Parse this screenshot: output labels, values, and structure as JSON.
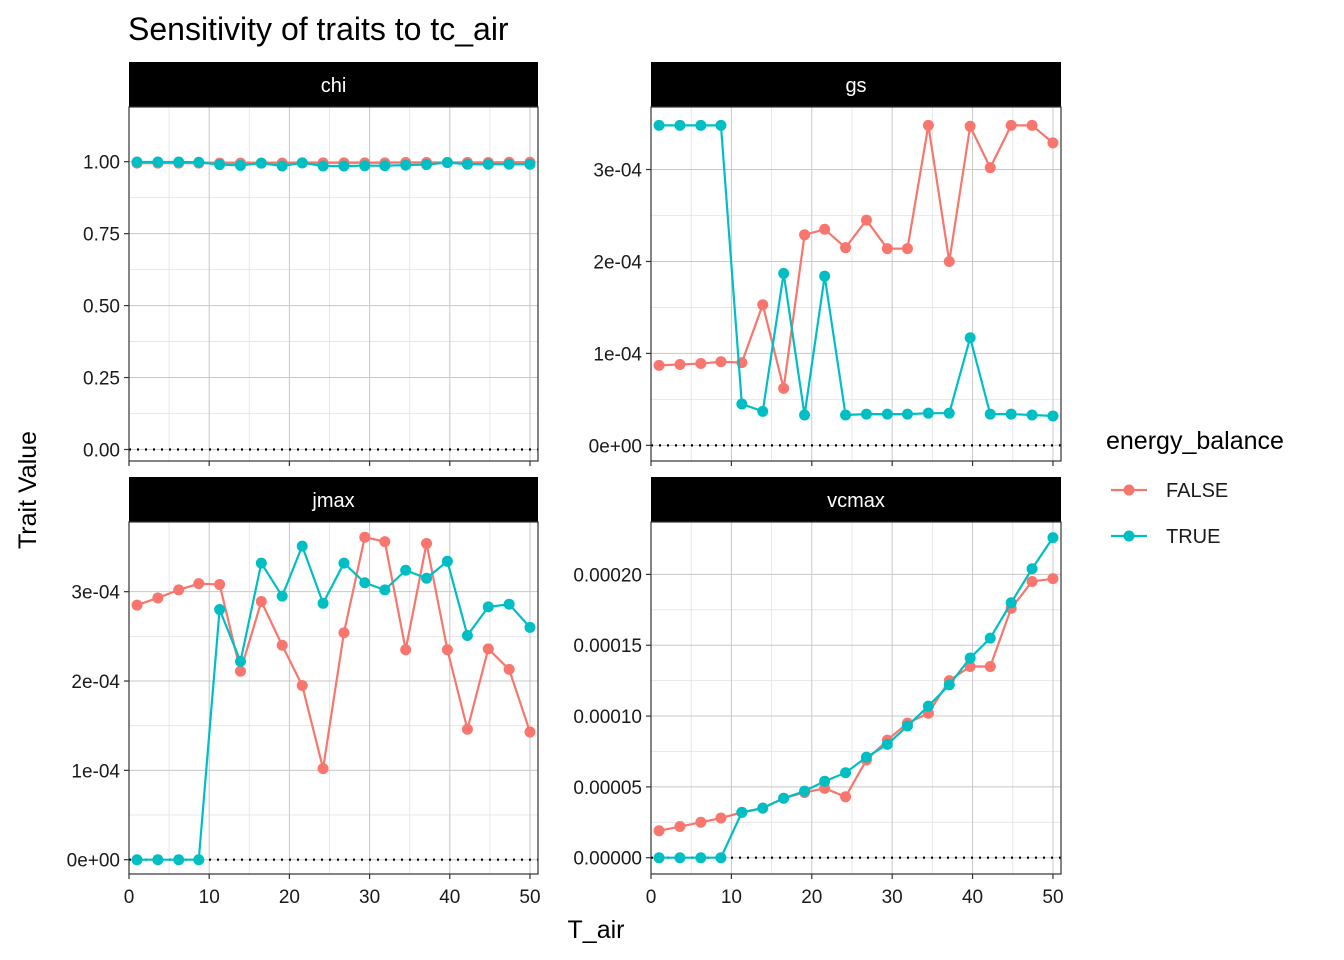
{
  "chart_data": {
    "type": "line",
    "title": "Sensitivity of traits to tc_air",
    "xlabel": "T_air",
    "ylabel": "Trait Value",
    "legend": {
      "title": "energy_balance",
      "placement": "right",
      "entries": [
        {
          "name": "FALSE",
          "color": "#F8766D"
        },
        {
          "name": "TRUE",
          "color": "#00BFC4"
        }
      ]
    },
    "x": [
      1,
      3.6,
      6.2,
      8.7,
      11.3,
      13.9,
      16.5,
      19.1,
      21.6,
      24.2,
      26.8,
      29.4,
      31.9,
      34.5,
      37.1,
      39.7,
      42.2,
      44.8,
      47.4,
      50
    ],
    "xlim": [
      0,
      51
    ],
    "xticks": [
      0,
      10,
      20,
      30,
      40,
      50
    ],
    "grid": true,
    "reference_line": {
      "y": 0,
      "style": "dotted"
    },
    "panels": [
      {
        "strip": "chi",
        "ylim": [
          -0.04,
          1.19
        ],
        "yticks": [
          0,
          0.25,
          0.5,
          0.75,
          1
        ],
        "ytick_labels": [
          "0.00",
          "0.25",
          "0.50",
          "0.75",
          "1.00"
        ],
        "series": [
          {
            "name": "FALSE",
            "values": [
              0.995,
              0.995,
              0.995,
              0.995,
              0.995,
              0.995,
              0.995,
              0.995,
              0.996,
              0.996,
              0.996,
              0.996,
              0.996,
              0.997,
              0.997,
              0.997,
              0.997,
              0.997,
              0.998,
              0.998
            ]
          },
          {
            "name": "TRUE",
            "values": [
              0.999,
              0.999,
              0.999,
              0.998,
              0.99,
              0.987,
              0.995,
              0.985,
              0.996,
              0.985,
              0.985,
              0.986,
              0.986,
              0.988,
              0.99,
              0.997,
              0.991,
              0.991,
              0.991,
              0.991
            ]
          }
        ]
      },
      {
        "strip": "gs",
        "ylim": [
          -1.7e-05,
          0.000368
        ],
        "yticks": [
          0,
          0.0001,
          0.0002,
          0.0003
        ],
        "ytick_labels": [
          "0e+00",
          "1e-04",
          "2e-04",
          "3e-04"
        ],
        "series": [
          {
            "name": "FALSE",
            "values": [
              8.7e-05,
              8.8e-05,
              8.9e-05,
              9.1e-05,
              9e-05,
              0.000153,
              6.2e-05,
              0.000229,
              0.000235,
              0.000215,
              0.000245,
              0.000214,
              0.000214,
              0.000348,
              0.0002,
              0.000347,
              0.000302,
              0.000348,
              0.000348,
              0.000329
            ]
          },
          {
            "name": "TRUE",
            "values": [
              0.000348,
              0.000348,
              0.000348,
              0.000348,
              4.5e-05,
              3.7e-05,
              0.000187,
              3.3e-05,
              0.000184,
              3.3e-05,
              3.4e-05,
              3.4e-05,
              3.4e-05,
              3.5e-05,
              3.5e-05,
              0.000117,
              3.4e-05,
              3.4e-05,
              3.3e-05,
              3.2e-05
            ]
          }
        ]
      },
      {
        "strip": "jmax",
        "ylim": [
          -1.6e-05,
          0.000378
        ],
        "yticks": [
          0,
          0.0001,
          0.0002,
          0.0003
        ],
        "ytick_labels": [
          "0e+00",
          "1e-04",
          "2e-04",
          "3e-04"
        ],
        "series": [
          {
            "name": "FALSE",
            "values": [
              0.000285,
              0.000293,
              0.000302,
              0.000309,
              0.000308,
              0.000211,
              0.000289,
              0.00024,
              0.000195,
              0.000102,
              0.000254,
              0.000361,
              0.000356,
              0.000235,
              0.000354,
              0.000235,
              0.000146,
              0.000236,
              0.000213,
              0.000143
            ]
          },
          {
            "name": "TRUE",
            "values": [
              0,
              0,
              0,
              0,
              0.00028,
              0.000222,
              0.000332,
              0.000295,
              0.000351,
              0.000287,
              0.000332,
              0.00031,
              0.000302,
              0.000324,
              0.000315,
              0.000334,
              0.000251,
              0.000283,
              0.000286,
              0.00026
            ]
          }
        ]
      },
      {
        "strip": "vcmax",
        "ylim": [
          -1.15e-05,
          0.000237
        ],
        "yticks": [
          0,
          5e-05,
          0.0001,
          0.00015,
          0.0002
        ],
        "ytick_labels": [
          "0.00000",
          "0.00005",
          "0.00010",
          "0.00015",
          "0.00020"
        ],
        "series": [
          {
            "name": "FALSE",
            "values": [
              1.9e-05,
              2.2e-05,
              2.5e-05,
              2.8e-05,
              3.2e-05,
              3.5e-05,
              4.2e-05,
              4.6e-05,
              4.9e-05,
              4.3e-05,
              6.9e-05,
              8.3e-05,
              9.5e-05,
              0.000102,
              0.000125,
              0.000135,
              0.000135,
              0.000176,
              0.000195,
              0.000197
            ]
          },
          {
            "name": "TRUE",
            "values": [
              0,
              0,
              0,
              0,
              3.2e-05,
              3.5e-05,
              4.2e-05,
              4.7e-05,
              5.4e-05,
              6e-05,
              7.1e-05,
              8e-05,
              9.3e-05,
              0.000107,
              0.000122,
              0.000141,
              0.000155,
              0.00018,
              0.000204,
              0.000226
            ]
          }
        ]
      }
    ]
  }
}
